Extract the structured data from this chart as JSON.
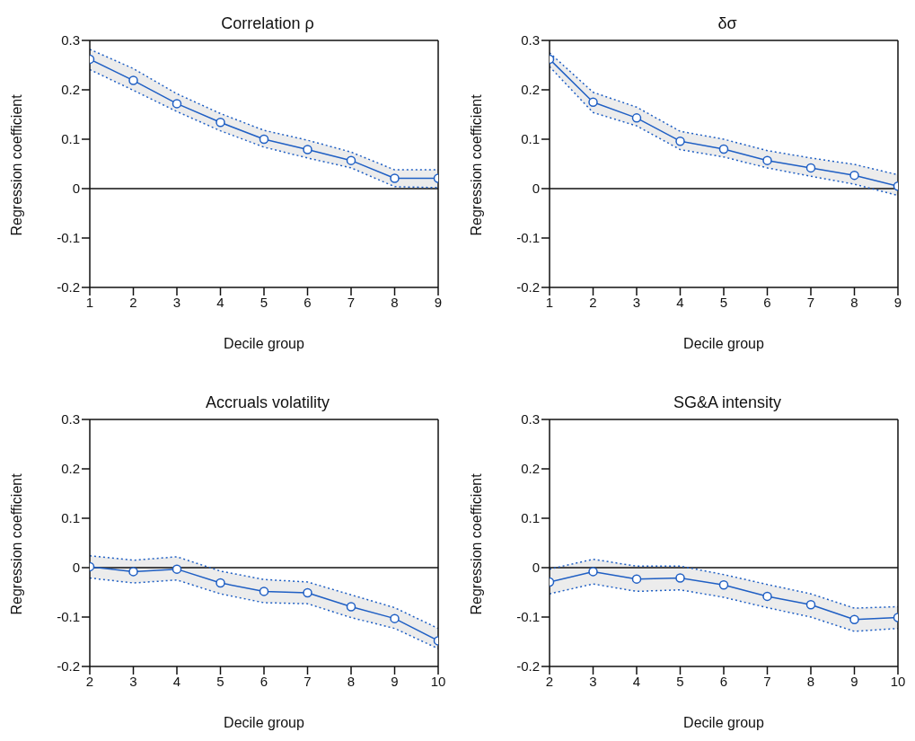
{
  "chart_data": [
    {
      "type": "line",
      "title": "Correlation ρ",
      "xlabel": "Decile group",
      "ylabel": "Regression coefficient",
      "x": [
        1,
        2,
        3,
        4,
        5,
        6,
        7,
        8,
        9
      ],
      "xlim": [
        1,
        9
      ],
      "xticks": [
        1,
        2,
        3,
        4,
        5,
        6,
        7,
        8,
        9
      ],
      "ylim": [
        -0.2,
        0.3
      ],
      "yticks": [
        -0.2,
        -0.1,
        0,
        0.1,
        0.2,
        0.3
      ],
      "marker": "circle",
      "line_style": "solid",
      "ref_lines": [
        {
          "axis": "y",
          "value": 0
        }
      ],
      "series": [
        {
          "color": "#1f5fc4",
          "values": [
            0.262,
            0.219,
            0.172,
            0.134,
            0.1,
            0.079,
            0.057,
            0.021,
            0.021
          ],
          "lower": [
            0.241,
            0.199,
            0.156,
            0.117,
            0.084,
            0.062,
            0.042,
            0.004,
            0.002
          ],
          "upper": [
            0.282,
            0.243,
            0.192,
            0.152,
            0.118,
            0.098,
            0.074,
            0.038,
            0.038
          ]
        },
        {
          "color": "#1f5fc4",
          "marker": "none",
          "line_style": "dotted",
          "values": [
            0.241,
            0.199,
            0.156,
            0.117,
            0.084,
            0.062,
            0.042,
            0.004,
            0.002
          ]
        },
        {
          "color": "#1f5fc4",
          "marker": "none",
          "line_style": "dotted",
          "values": [
            0.282,
            0.243,
            0.192,
            0.152,
            0.118,
            0.098,
            0.074,
            0.038,
            0.038
          ]
        }
      ]
    },
    {
      "type": "line",
      "title": "δσ",
      "xlabel": "Decile group",
      "ylabel": "Regression coefficient",
      "x": [
        1,
        2,
        3,
        4,
        5,
        6,
        7,
        8,
        9
      ],
      "xlim": [
        1,
        9
      ],
      "xticks": [
        1,
        2,
        3,
        4,
        5,
        6,
        7,
        8,
        9
      ],
      "ylim": [
        -0.2,
        0.3
      ],
      "yticks": [
        -0.2,
        -0.1,
        0,
        0.1,
        0.2,
        0.3
      ],
      "marker": "circle",
      "line_style": "solid",
      "ref_lines": [
        {
          "axis": "y",
          "value": 0
        }
      ],
      "series": [
        {
          "color": "#1f5fc4",
          "values": [
            0.262,
            0.175,
            0.143,
            0.096,
            0.08,
            0.057,
            0.042,
            0.027,
            0.005
          ],
          "lower": [
            0.247,
            0.154,
            0.127,
            0.079,
            0.064,
            0.042,
            0.025,
            0.009,
            -0.014
          ],
          "upper": [
            0.275,
            0.195,
            0.165,
            0.116,
            0.1,
            0.077,
            0.062,
            0.049,
            0.028
          ]
        },
        {
          "color": "#1f5fc4",
          "marker": "none",
          "line_style": "dotted",
          "values": [
            0.247,
            0.154,
            0.127,
            0.079,
            0.064,
            0.042,
            0.025,
            0.009,
            -0.014
          ]
        },
        {
          "color": "#1f5fc4",
          "marker": "none",
          "line_style": "dotted",
          "values": [
            0.275,
            0.195,
            0.165,
            0.116,
            0.1,
            0.077,
            0.062,
            0.049,
            0.028
          ]
        }
      ]
    },
    {
      "type": "line",
      "title": "Accruals volatility",
      "xlabel": "Decile group",
      "ylabel": "Regression coefficient",
      "x": [
        2,
        3,
        4,
        5,
        6,
        7,
        8,
        9,
        10
      ],
      "xlim": [
        2,
        10
      ],
      "xticks": [
        2,
        3,
        4,
        5,
        6,
        7,
        8,
        9,
        10
      ],
      "ylim": [
        -0.2,
        0.3
      ],
      "yticks": [
        -0.2,
        -0.1,
        0,
        0.1,
        0.2,
        0.3
      ],
      "marker": "circle",
      "line_style": "solid",
      "ref_lines": [
        {
          "axis": "y",
          "value": 0
        }
      ],
      "series": [
        {
          "color": "#1f5fc4",
          "values": [
            0.002,
            -0.008,
            -0.003,
            -0.031,
            -0.048,
            -0.051,
            -0.079,
            -0.103,
            -0.148
          ],
          "lower": [
            -0.021,
            -0.031,
            -0.025,
            -0.053,
            -0.071,
            -0.073,
            -0.101,
            -0.123,
            -0.164
          ],
          "upper": [
            0.024,
            0.015,
            0.022,
            -0.007,
            -0.024,
            -0.029,
            -0.055,
            -0.081,
            -0.123
          ]
        },
        {
          "color": "#1f5fc4",
          "marker": "none",
          "line_style": "dotted",
          "values": [
            -0.021,
            -0.031,
            -0.025,
            -0.053,
            -0.071,
            -0.073,
            -0.101,
            -0.123,
            -0.164
          ]
        },
        {
          "color": "#1f5fc4",
          "marker": "none",
          "line_style": "dotted",
          "values": [
            0.024,
            0.015,
            0.022,
            -0.007,
            -0.024,
            -0.029,
            -0.055,
            -0.081,
            -0.123
          ]
        }
      ]
    },
    {
      "type": "line",
      "title": "SG&A intensity",
      "xlabel": "Decile group",
      "ylabel": "Regression coefficient",
      "x": [
        2,
        3,
        4,
        5,
        6,
        7,
        8,
        9,
        10
      ],
      "xlim": [
        2,
        10
      ],
      "xticks": [
        2,
        3,
        4,
        5,
        6,
        7,
        8,
        9,
        10
      ],
      "ylim": [
        -0.2,
        0.3
      ],
      "yticks": [
        -0.2,
        -0.1,
        0,
        0.1,
        0.2,
        0.3
      ],
      "marker": "circle",
      "line_style": "solid",
      "ref_lines": [
        {
          "axis": "y",
          "value": 0
        }
      ],
      "series": [
        {
          "color": "#1f5fc4",
          "values": [
            -0.029,
            -0.008,
            -0.023,
            -0.021,
            -0.035,
            -0.058,
            -0.075,
            -0.105,
            -0.101
          ],
          "lower": [
            -0.053,
            -0.033,
            -0.048,
            -0.045,
            -0.06,
            -0.081,
            -0.1,
            -0.129,
            -0.123
          ],
          "upper": [
            -0.003,
            0.017,
            0.003,
            0.003,
            -0.014,
            -0.034,
            -0.053,
            -0.082,
            -0.079
          ]
        },
        {
          "color": "#1f5fc4",
          "marker": "none",
          "line_style": "dotted",
          "values": [
            -0.053,
            -0.033,
            -0.048,
            -0.045,
            -0.06,
            -0.081,
            -0.1,
            -0.129,
            -0.123
          ]
        },
        {
          "color": "#1f5fc4",
          "marker": "none",
          "line_style": "dotted",
          "values": [
            -0.003,
            0.017,
            0.003,
            0.003,
            -0.014,
            -0.034,
            -0.053,
            -0.082,
            -0.079
          ]
        }
      ]
    }
  ]
}
